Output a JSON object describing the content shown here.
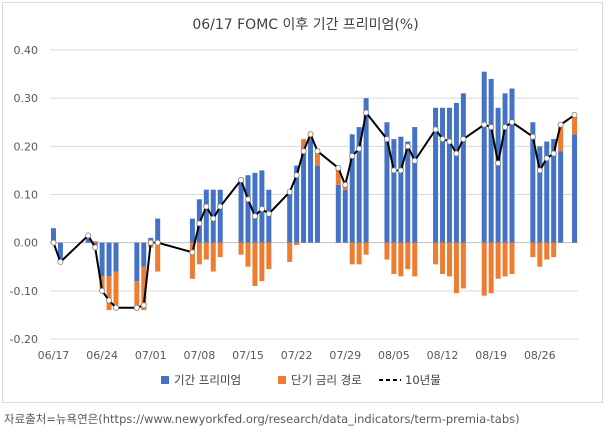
{
  "chart_data": {
    "type": "bar",
    "title": "06/17 FOMC 이후 기간  프리미엄(%)",
    "xlabel": "",
    "ylabel": "",
    "ylim": [
      -0.2,
      0.4
    ],
    "yticks": [
      "0.40",
      "0.30",
      "0.20",
      "0.10",
      "0.00",
      "-0.10",
      "-0.20"
    ],
    "ytick_values": [
      0.4,
      0.3,
      0.2,
      0.1,
      0.0,
      -0.1,
      -0.2
    ],
    "grid": true,
    "legend_position": "bottom",
    "bar_mode": "stacked",
    "x": [
      "06/17",
      "06/18",
      "06/19",
      "06/20",
      "06/21",
      "06/22",
      "06/23",
      "06/24",
      "06/25",
      "06/26",
      "06/27",
      "06/28",
      "06/29",
      "06/30",
      "07/01",
      "07/02",
      "07/03",
      "07/04",
      "07/05",
      "07/06",
      "07/07",
      "07/08",
      "07/09",
      "07/10",
      "07/11",
      "07/12",
      "07/13",
      "07/14",
      "07/15",
      "07/16",
      "07/17",
      "07/18",
      "07/19",
      "07/20",
      "07/21",
      "07/22",
      "07/23",
      "07/24",
      "07/25",
      "07/26",
      "07/27",
      "07/28",
      "07/29",
      "07/30",
      "07/31",
      "08/01",
      "08/02",
      "08/03",
      "08/04",
      "08/05",
      "08/06",
      "08/07",
      "08/08",
      "08/09",
      "08/10",
      "08/11",
      "08/12",
      "08/13",
      "08/14",
      "08/15",
      "08/16",
      "08/17",
      "08/18",
      "08/19",
      "08/20",
      "08/21",
      "08/22",
      "08/23",
      "08/24",
      "08/25",
      "08/26",
      "08/27",
      "08/28",
      "08/29",
      "08/30",
      "08/31"
    ],
    "x_tick_labels": [
      "06/17",
      "06/24",
      "07/01",
      "07/08",
      "07/15",
      "07/22",
      "07/29",
      "08/05",
      "08/12",
      "08/19",
      "08/26"
    ],
    "series": [
      {
        "name": "기간 프리미엄",
        "kind": "bar",
        "color": "#4472c4",
        "values": [
          0.03,
          -0.04,
          null,
          null,
          null,
          0.01,
          -0.01,
          -0.07,
          -0.07,
          -0.06,
          null,
          null,
          -0.08,
          -0.05,
          0.01,
          0.05,
          null,
          null,
          null,
          null,
          0.05,
          0.09,
          0.11,
          0.11,
          0.11,
          null,
          null,
          0.13,
          0.14,
          0.145,
          0.15,
          0.11,
          null,
          null,
          0.11,
          0.16,
          0.19,
          0.215,
          0.16,
          null,
          null,
          0.12,
          0.11,
          0.225,
          0.24,
          0.3,
          null,
          null,
          0.25,
          0.215,
          0.22,
          0.21,
          0.24,
          null,
          null,
          0.28,
          0.28,
          0.28,
          0.29,
          0.31,
          null,
          null,
          0.355,
          0.34,
          0.28,
          0.31,
          0.32,
          null,
          null,
          0.25,
          0.2,
          0.21,
          0.215,
          0.19,
          null,
          0.225
        ]
      },
      {
        "name": "단기 금리 경로",
        "kind": "bar",
        "color": "#ed7d31",
        "values": [
          null,
          null,
          null,
          null,
          null,
          0.005,
          0.003,
          -0.03,
          -0.07,
          -0.07,
          null,
          null,
          -0.06,
          -0.09,
          -0.01,
          -0.06,
          null,
          null,
          null,
          null,
          -0.075,
          -0.045,
          -0.035,
          -0.06,
          -0.03,
          null,
          null,
          -0.025,
          -0.05,
          -0.09,
          -0.08,
          -0.055,
          null,
          null,
          -0.04,
          -0.005,
          0.025,
          0.015,
          0.035,
          null,
          null,
          0.035,
          0.015,
          -0.045,
          -0.045,
          -0.025,
          null,
          null,
          -0.035,
          -0.065,
          -0.07,
          -0.055,
          -0.07,
          null,
          null,
          -0.045,
          -0.065,
          -0.07,
          -0.105,
          -0.095,
          null,
          null,
          -0.11,
          -0.105,
          -0.075,
          -0.07,
          -0.065,
          null,
          null,
          -0.03,
          -0.05,
          -0.035,
          -0.03,
          0.055,
          null,
          0.04
        ]
      },
      {
        "name": "10년물",
        "kind": "line",
        "color": "#000000",
        "values": [
          0.0,
          -0.04,
          null,
          null,
          null,
          0.015,
          -0.01,
          -0.1,
          -0.12,
          -0.135,
          null,
          null,
          -0.135,
          -0.13,
          0.0,
          0.0,
          null,
          null,
          null,
          null,
          -0.02,
          0.04,
          0.075,
          0.05,
          0.075,
          null,
          null,
          0.13,
          0.09,
          0.055,
          0.07,
          0.06,
          null,
          null,
          0.105,
          0.14,
          0.19,
          0.225,
          0.19,
          null,
          null,
          0.155,
          0.12,
          0.18,
          0.195,
          0.27,
          null,
          null,
          0.215,
          0.15,
          0.15,
          0.2,
          0.17,
          null,
          null,
          0.235,
          0.215,
          0.21,
          0.185,
          0.215,
          null,
          null,
          0.245,
          0.24,
          0.165,
          0.24,
          0.25,
          null,
          null,
          0.22,
          0.15,
          0.175,
          0.185,
          0.245,
          null,
          0.265
        ]
      }
    ]
  },
  "source_text": "자료출처=뉴욕연은(https://www.newyorkfed.org/research/data_indicators/term-premia-tabs)",
  "colors": {
    "bar_term_premium": "#4472c4",
    "bar_rate_path": "#ed7d31",
    "line_10y": "#000000",
    "grid": "#d9d9d9",
    "axis": "#bfbfbf"
  }
}
